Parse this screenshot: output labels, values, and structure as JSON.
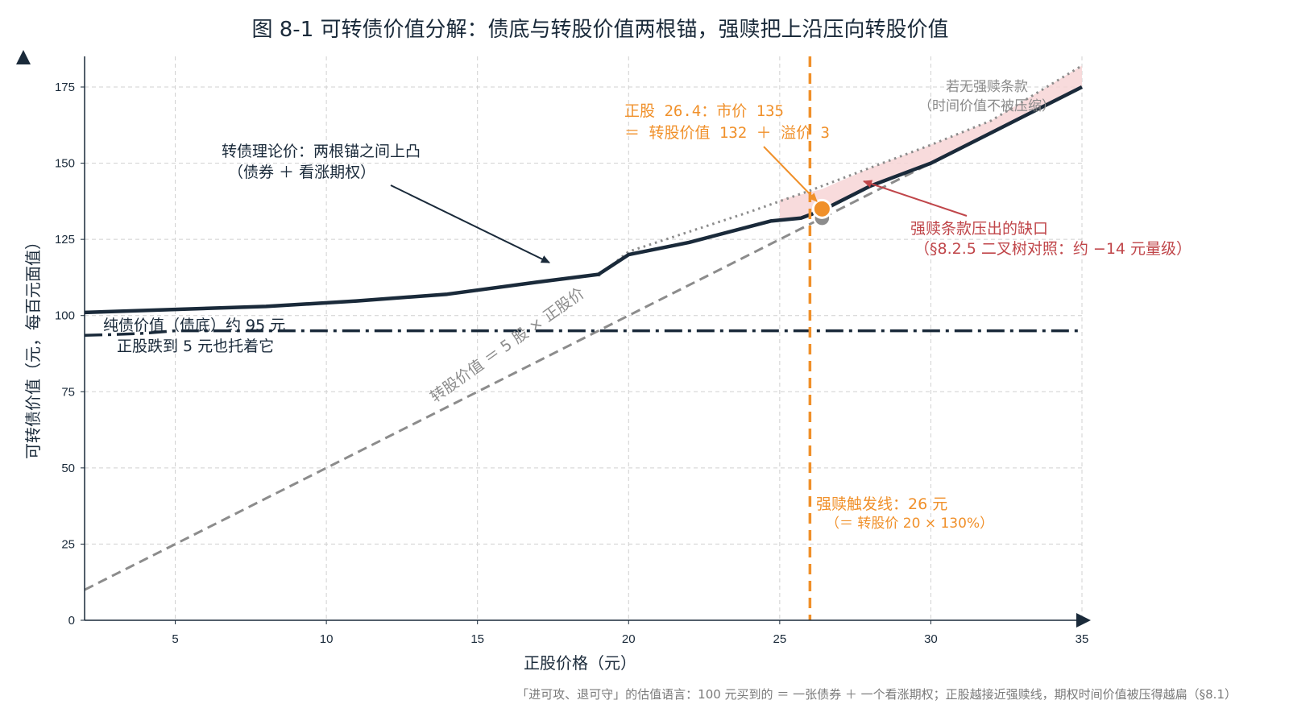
{
  "chart_data": {
    "type": "line",
    "title": "图 8-1 可转债价值分解：债底与转股价值两根锚，强赎把上沿压向转股价值",
    "xlabel": "正股价格（元）",
    "ylabel": "可转债价值（元，每百元面值）",
    "xlim": [
      2,
      35
    ],
    "ylim": [
      0,
      175
    ],
    "xticks": [
      5,
      10,
      15,
      20,
      25,
      30,
      35
    ],
    "yticks": [
      0,
      25,
      50,
      75,
      100,
      125,
      150,
      175
    ],
    "grid": true,
    "series": [
      {
        "key": "bond_floor",
        "color": "#1a2a3a",
        "style": "dashdot",
        "x": [
          2,
          3,
          4,
          5,
          35
        ],
        "y": [
          93.5,
          93.8,
          94.2,
          95,
          95
        ]
      },
      {
        "key": "conversion_value",
        "color": "#8c8c8c",
        "style": "dashed",
        "x": [
          2,
          35
        ],
        "y": [
          10,
          175
        ]
      },
      {
        "key": "no_call_value",
        "color": "#8c8c8c",
        "style": "dotted",
        "x": [
          19,
          20,
          22,
          24,
          26,
          28,
          30,
          32,
          35
        ],
        "y": [
          113,
          121,
          127.5,
          134,
          141,
          148.5,
          156,
          164,
          182
        ]
      },
      {
        "key": "theoretical_price",
        "color": "#1a2a3a",
        "style": "solid",
        "x": [
          2,
          5,
          8,
          11,
          14,
          17,
          19,
          20,
          22,
          24.7,
          25.7,
          26.4,
          28,
          30,
          32,
          35
        ],
        "y": [
          101,
          102,
          103,
          104.8,
          107,
          111,
          113.5,
          120,
          124,
          131,
          132,
          134.5,
          142.5,
          150,
          160,
          175
        ]
      }
    ],
    "call_gap_band": {
      "x": [
        25,
        26.4,
        28,
        30,
        32,
        35
      ],
      "y_upper": [
        138,
        141.5,
        148.5,
        156,
        164,
        182
      ],
      "y_lower": [
        131.5,
        133.5,
        142.5,
        150,
        160,
        175
      ],
      "color": "#f7d5d6"
    },
    "call_trigger": {
      "x": 26,
      "color": "#f0902a"
    },
    "points": [
      {
        "x": 26.4,
        "y": 135,
        "color": "#f0902a"
      },
      {
        "x": 26.4,
        "y": 132,
        "color": "#8c8c8c"
      }
    ],
    "annotations": {
      "theoretical": {
        "line1": "转债理论价：两根锚之间上凸",
        "line2": "（债券 ＋ 看涨期权）"
      },
      "bond_floor": {
        "line1": "纯债价值（债底）约 95 元",
        "line2": "正股跌到 5 元也托着它"
      },
      "conversion": {
        "text": "转股价值 ＝ 5 股 × 正股价"
      },
      "point": {
        "line1": "正股 26.4：市价 135",
        "line2": "＝ 转股价值 132 ＋ 溢价 3"
      },
      "no_call": {
        "line1": "若无强赎条款",
        "line2": "（时间价值不被压缩）"
      },
      "gap": {
        "line1": "强赎条款压出的缺口",
        "line2": "（§8.2.5 二叉树对照：约 −14 元量级）"
      },
      "trigger": {
        "line1": "强赎触发线：26 元",
        "line2": "（＝ 转股价 20 × 130%）"
      }
    },
    "footnote": "「进可攻、退可守」的估值语言：100 元买到的 ＝ 一张债券 ＋ 一个看涨期权；正股越接近强赎线，期权时间价值被压得越扁（§8.1）"
  }
}
